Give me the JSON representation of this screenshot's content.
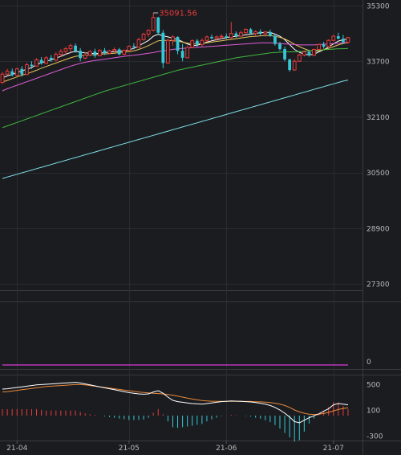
{
  "chart_data": [
    {
      "type": "candlestick",
      "title": "",
      "ylim": [
        27000,
        35300
      ],
      "y_ticks": [
        35300,
        33700,
        32100,
        30500,
        28900,
        27300
      ],
      "y_tick_labels": [
        "35300",
        "33700",
        "32100",
        "30500",
        "28900",
        "27300"
      ],
      "max_annotation": {
        "label": "35091.56",
        "value": 35091.56
      },
      "bullish_color": "#e83b3b",
      "bearish_color": "#36c8d6",
      "ohlc": [
        [
          33090,
          33390,
          33050,
          33330
        ],
        [
          33330,
          33480,
          33300,
          33410
        ],
        [
          33410,
          33490,
          33260,
          33300
        ],
        [
          33300,
          33520,
          33280,
          33480
        ],
        [
          33480,
          33560,
          33260,
          33320
        ],
        [
          33320,
          33660,
          33300,
          33600
        ],
        [
          33600,
          33700,
          33480,
          33560
        ],
        [
          33560,
          33790,
          33540,
          33740
        ],
        [
          33740,
          33820,
          33600,
          33640
        ],
        [
          33640,
          33850,
          33620,
          33800
        ],
        [
          33800,
          33880,
          33680,
          33730
        ],
        [
          33730,
          33960,
          33700,
          33900
        ],
        [
          33900,
          34050,
          33830,
          33980
        ],
        [
          33980,
          34110,
          33900,
          34060
        ],
        [
          34060,
          34200,
          33950,
          34150
        ],
        [
          34150,
          34210,
          33940,
          34000
        ],
        [
          34000,
          34080,
          33700,
          33790
        ],
        [
          33790,
          33950,
          33750,
          33880
        ],
        [
          33880,
          34020,
          33840,
          33980
        ],
        [
          33980,
          34060,
          33800,
          33860
        ],
        [
          33860,
          34050,
          33840,
          34010
        ],
        [
          34010,
          34080,
          33880,
          33930
        ],
        [
          33930,
          34030,
          33900,
          34000
        ],
        [
          34000,
          34100,
          33940,
          34040
        ],
        [
          34040,
          34080,
          33870,
          33900
        ],
        [
          33900,
          34040,
          33880,
          34010
        ],
        [
          34010,
          34160,
          33990,
          34130
        ],
        [
          34130,
          34220,
          34040,
          34100
        ],
        [
          34100,
          34380,
          34080,
          34320
        ],
        [
          34320,
          34520,
          34290,
          34480
        ],
        [
          34480,
          34620,
          34400,
          34590
        ],
        [
          34590,
          35091.56,
          34560,
          34960
        ],
        [
          34960,
          34980,
          34450,
          34520
        ],
        [
          34520,
          34600,
          33500,
          33650
        ],
        [
          33650,
          34350,
          33630,
          34300
        ],
        [
          34300,
          34450,
          34150,
          34400
        ],
        [
          34400,
          34420,
          33900,
          34000
        ],
        [
          34000,
          34200,
          33700,
          33800
        ],
        [
          33800,
          34150,
          33780,
          34100
        ],
        [
          34100,
          34330,
          34080,
          34290
        ],
        [
          34290,
          34340,
          34120,
          34180
        ],
        [
          34180,
          34360,
          34120,
          34300
        ],
        [
          34300,
          34440,
          34260,
          34400
        ],
        [
          34400,
          34470,
          34330,
          34360
        ],
        [
          34360,
          34440,
          34280,
          34400
        ],
        [
          34400,
          34480,
          34330,
          34420
        ],
        [
          34420,
          34500,
          34340,
          34380
        ],
        [
          34380,
          34830,
          34350,
          34500
        ],
        [
          34500,
          34560,
          34380,
          34420
        ],
        [
          34420,
          34580,
          34400,
          34520
        ],
        [
          34520,
          34640,
          34500,
          34620
        ],
        [
          34620,
          34660,
          34460,
          34500
        ],
        [
          34500,
          34590,
          34420,
          34550
        ],
        [
          34550,
          34620,
          34450,
          34490
        ],
        [
          34490,
          34580,
          34410,
          34540
        ],
        [
          34540,
          34610,
          34400,
          34430
        ],
        [
          34430,
          34480,
          34150,
          34200
        ],
        [
          34200,
          34260,
          34000,
          34050
        ],
        [
          34050,
          34120,
          33700,
          33750
        ],
        [
          33750,
          33780,
          33400,
          33450
        ],
        [
          33450,
          33760,
          33420,
          33700
        ],
        [
          33700,
          33920,
          33680,
          33880
        ],
        [
          33880,
          34010,
          33840,
          33970
        ],
        [
          33970,
          34010,
          33830,
          33870
        ],
        [
          33870,
          34060,
          33850,
          34040
        ],
        [
          34040,
          34210,
          34010,
          34180
        ],
        [
          34180,
          34260,
          34060,
          34120
        ],
        [
          34120,
          34330,
          34100,
          34300
        ],
        [
          34300,
          34460,
          34280,
          34420
        ],
        [
          34420,
          34520,
          34330,
          34350
        ],
        [
          34350,
          34460,
          34200,
          34250
        ],
        [
          34250,
          34400,
          34200,
          34380
        ]
      ],
      "moving_averages": [
        {
          "color": "#ffffff",
          "values": [
            33220,
            33280,
            33320,
            33380,
            33420,
            33470,
            33520,
            33600,
            33660,
            33700,
            33740,
            33790,
            33840,
            33900,
            33950,
            33990,
            33960,
            33940,
            33930,
            33920,
            33930,
            33950,
            33960,
            33980,
            33990,
            34000,
            34030,
            34070,
            34140,
            34220,
            34300,
            34420,
            34480,
            34430,
            34400,
            34360,
            34330,
            34260,
            34200,
            34150,
            34160,
            34200,
            34250,
            34290,
            34320,
            34350,
            34380,
            34400,
            34420,
            34440,
            34460,
            34480,
            34500,
            34520,
            34530,
            34530,
            34480,
            34420,
            34320,
            34180,
            34040,
            33960,
            33900,
            33880,
            33900,
            33970,
            34030,
            34110,
            34200,
            34280,
            34320,
            34340
          ]
        },
        {
          "color": "#e8c45a",
          "values": [
            33100,
            33150,
            33200,
            33250,
            33300,
            33340,
            33390,
            33440,
            33500,
            33550,
            33600,
            33650,
            33700,
            33750,
            33800,
            33840,
            33860,
            33870,
            33880,
            33890,
            33900,
            33910,
            33920,
            33930,
            33950,
            33960,
            33980,
            34000,
            34040,
            34090,
            34150,
            34220,
            34290,
            34300,
            34300,
            34290,
            34280,
            34250,
            34220,
            34200,
            34200,
            34210,
            34230,
            34250,
            34270,
            34290,
            34310,
            34330,
            34350,
            34370,
            34390,
            34410,
            34420,
            34430,
            34440,
            34440,
            34420,
            34390,
            34340,
            34270,
            34190,
            34120,
            34060,
            34010,
            33990,
            34000,
            34030,
            34070,
            34120,
            34170,
            34210,
            34240
          ]
        },
        {
          "color": "#e05cd8",
          "values": [
            32850,
            32910,
            32960,
            33010,
            33060,
            33110,
            33160,
            33210,
            33260,
            33310,
            33360,
            33410,
            33460,
            33510,
            33560,
            33600,
            33640,
            33670,
            33700,
            33720,
            33740,
            33760,
            33780,
            33800,
            33820,
            33840,
            33860,
            33870,
            33890,
            33910,
            33930,
            33950,
            33980,
            34000,
            34020,
            34040,
            34060,
            34070,
            34080,
            34090,
            34100,
            34110,
            34120,
            34130,
            34140,
            34150,
            34160,
            34170,
            34180,
            34190,
            34200,
            34210,
            34220,
            34230,
            34230,
            34230,
            34220,
            34210,
            34200,
            34190,
            34180,
            34170,
            34170,
            34170,
            34170,
            34180,
            34190,
            34200,
            34210,
            34220,
            34230,
            34240
          ]
        },
        {
          "color": "#3fb83f",
          "values": [
            31790,
            31840,
            31890,
            31940,
            31990,
            32040,
            32090,
            32140,
            32190,
            32240,
            32290,
            32340,
            32390,
            32440,
            32490,
            32540,
            32590,
            32640,
            32690,
            32740,
            32790,
            32840,
            32880,
            32920,
            32960,
            33000,
            33040,
            33080,
            33120,
            33160,
            33200,
            33240,
            33280,
            33320,
            33360,
            33400,
            33440,
            33470,
            33500,
            33530,
            33560,
            33590,
            33620,
            33650,
            33680,
            33710,
            33740,
            33770,
            33800,
            33820,
            33840,
            33860,
            33880,
            33900,
            33920,
            33940,
            33950,
            33960,
            33970,
            33970,
            33970,
            33980,
            33990,
            34000,
            34010,
            34020,
            34030,
            34040,
            34050,
            34060,
            34060,
            34070
          ]
        },
        {
          "color": "#7ee0e8",
          "values": [
            30330,
            30370,
            30410,
            30450,
            30490,
            30530,
            30570,
            30610,
            30650,
            30690,
            30730,
            30770,
            30810,
            30850,
            30890,
            30930,
            30970,
            31010,
            31050,
            31090,
            31130,
            31170,
            31210,
            31250,
            31290,
            31330,
            31370,
            31410,
            31450,
            31490,
            31530,
            31570,
            31610,
            31650,
            31690,
            31730,
            31770,
            31810,
            31850,
            31890,
            31930,
            31970,
            32010,
            32050,
            32090,
            32130,
            32170,
            32210,
            32250,
            32290,
            32330,
            32370,
            32410,
            32450,
            32490,
            32530,
            32570,
            32610,
            32650,
            32690,
            32730,
            32770,
            32810,
            32850,
            32890,
            32930,
            32970,
            33010,
            33050,
            33090,
            33130,
            33160
          ]
        }
      ]
    },
    {
      "type": "line",
      "title": "",
      "y_tick_labels": [
        "0"
      ],
      "series": [
        {
          "color": "#d83cd8",
          "values": [
            0,
            0,
            0,
            0,
            0,
            0,
            0,
            0,
            0,
            0,
            0,
            0,
            0,
            0,
            0,
            0,
            0,
            0,
            0,
            0,
            0,
            0,
            0,
            0,
            0,
            0,
            0,
            0,
            0,
            0,
            0,
            0,
            0,
            0,
            0,
            0,
            0,
            0,
            0,
            0,
            0,
            0,
            0,
            0,
            0,
            0,
            0,
            0,
            0,
            0,
            0,
            0,
            0,
            0,
            0,
            0,
            0,
            0,
            0,
            0,
            0,
            0,
            0,
            0,
            0,
            0,
            0,
            0,
            0,
            0,
            0,
            0
          ]
        }
      ]
    },
    {
      "type": "macd",
      "title": "",
      "ylim": [
        -330,
        580
      ],
      "y_ticks": [
        500,
        100,
        -300
      ],
      "y_tick_labels": [
        "500",
        "100",
        "-300"
      ],
      "x_tick_labels": [
        "21-04",
        "21-05",
        "21-06",
        "21-07"
      ],
      "x_tick_positions": [
        3,
        26,
        46,
        68
      ],
      "dif": {
        "color": "#ffffff",
        "values": [
          425,
          430,
          440,
          450,
          460,
          470,
          480,
          490,
          495,
          500,
          505,
          510,
          515,
          520,
          525,
          530,
          520,
          505,
          490,
          475,
          460,
          445,
          430,
          415,
          400,
          385,
          370,
          360,
          350,
          345,
          350,
          380,
          400,
          360,
          300,
          250,
          230,
          220,
          210,
          200,
          195,
          190,
          200,
          210,
          220,
          230,
          235,
          240,
          238,
          234,
          230,
          225,
          215,
          205,
          190,
          170,
          140,
          100,
          50,
          -10,
          -80,
          -100,
          -60,
          -20,
          10,
          40,
          80,
          120,
          180,
          200,
          190,
          180
        ]
      },
      "dea": {
        "color": "#e8893a",
        "values": [
          380,
          385,
          395,
          405,
          415,
          425,
          435,
          445,
          455,
          465,
          470,
          475,
          480,
          485,
          490,
          495,
          495,
          490,
          480,
          470,
          460,
          450,
          440,
          430,
          420,
          410,
          400,
          390,
          380,
          372,
          365,
          360,
          355,
          350,
          340,
          330,
          315,
          300,
          285,
          270,
          258,
          248,
          240,
          236,
          234,
          234,
          234,
          235,
          235,
          234,
          233,
          232,
          229,
          226,
          222,
          215,
          205,
          190,
          170,
          140,
          100,
          70,
          50,
          35,
          30,
          34,
          45,
          62,
          86,
          108,
          124,
          135
        ]
      },
      "histogram": [
        90,
        90,
        90,
        90,
        90,
        90,
        90,
        90,
        80,
        70,
        70,
        70,
        70,
        70,
        70,
        70,
        50,
        30,
        20,
        10,
        0,
        -10,
        -20,
        -30,
        -40,
        -50,
        -60,
        -60,
        -60,
        -54,
        -30,
        40,
        90,
        20,
        -80,
        -160,
        -170,
        -160,
        -150,
        -140,
        -126,
        -116,
        -80,
        -52,
        -28,
        -8,
        2,
        10,
        6,
        0,
        -6,
        -14,
        -28,
        -42,
        -64,
        -90,
        -130,
        -180,
        -240,
        -300,
        -360,
        -340,
        -220,
        -110,
        -40,
        12,
        70,
        116,
        188,
        184,
        132,
        90
      ]
    }
  ]
}
